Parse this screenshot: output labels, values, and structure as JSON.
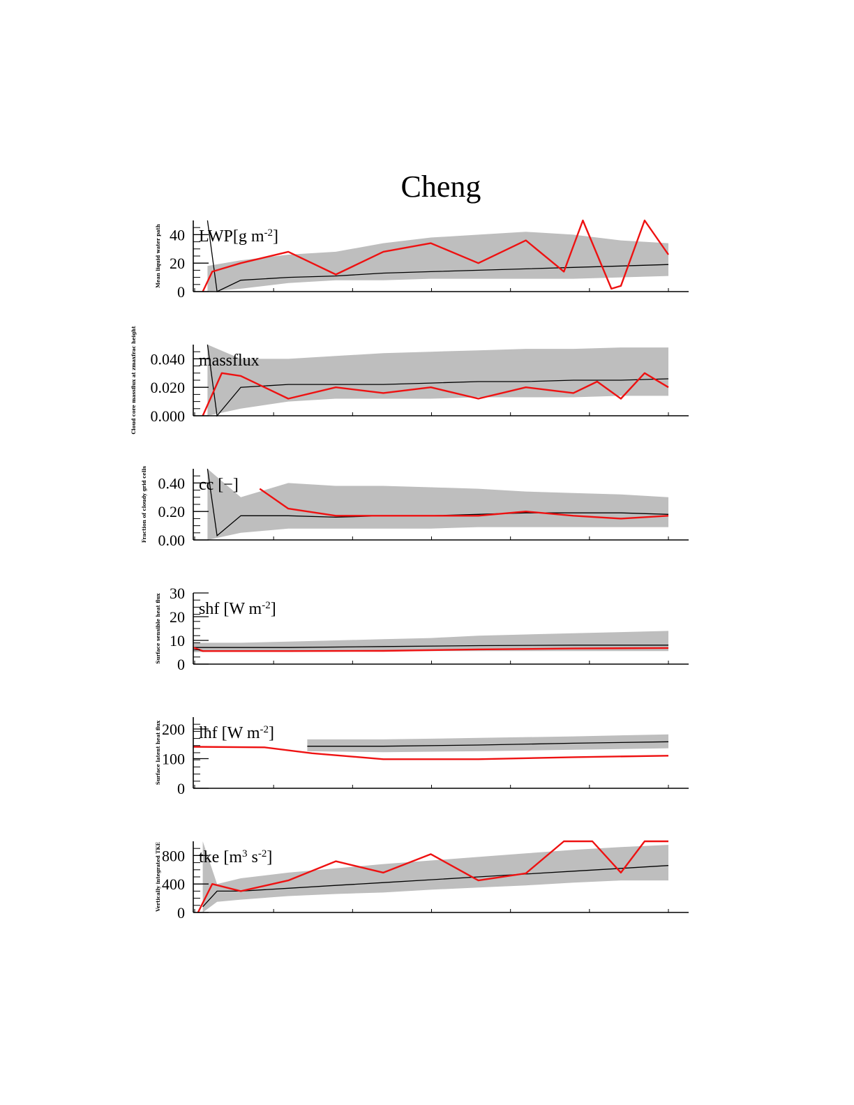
{
  "figure": {
    "title": "Cheng",
    "colors": {
      "band": "#bebebe",
      "mean": "#000000",
      "model": "#ee1111",
      "axis": "#000000"
    }
  },
  "chart_data": [
    {
      "type": "line",
      "panel_label": "LWP[g m",
      "panel_label_sup": "-2",
      "panel_label_end": "]",
      "ylabel": "Mean liquid water path",
      "ylim": [
        0,
        50
      ],
      "yticks": [
        0,
        20,
        40
      ],
      "ytick_labels": [
        "0",
        "20",
        "40"
      ],
      "xlim": [
        0,
        1
      ],
      "band_min": 0,
      "band_max": 50,
      "mean": 13,
      "red": 18,
      "grid": false,
      "series": [
        {
          "role": "ensemble range",
          "x": [
            0.03,
            0.1,
            0.2,
            0.3,
            0.4,
            0.5,
            0.6,
            0.7,
            0.8,
            0.9,
            1.0
          ],
          "low": [
            0,
            2,
            6,
            8,
            8,
            9,
            9,
            9,
            9,
            10,
            11
          ],
          "high": [
            18,
            22,
            26,
            28,
            34,
            38,
            40,
            42,
            40,
            36,
            34
          ]
        },
        {
          "role": "ensemble mean",
          "x": [
            0.03,
            0.05,
            0.1,
            0.2,
            0.3,
            0.4,
            0.5,
            0.6,
            0.7,
            0.8,
            0.9,
            1.0
          ],
          "y": [
            50,
            0,
            8,
            10,
            11,
            13,
            14,
            15,
            16,
            17,
            18,
            19
          ]
        },
        {
          "role": "model",
          "x": [
            0.02,
            0.04,
            0.1,
            0.2,
            0.3,
            0.4,
            0.5,
            0.6,
            0.7,
            0.78,
            0.82,
            0.88,
            0.9,
            0.95,
            1.0
          ],
          "y": [
            0,
            14,
            20,
            28,
            12,
            28,
            34,
            20,
            36,
            14,
            50,
            2,
            4,
            50,
            26
          ]
        }
      ]
    },
    {
      "type": "line",
      "panel_label": "massflux",
      "panel_label_sup": "",
      "panel_label_end": "",
      "ylabel": "Cloud core massflux at zmaxfrac height",
      "ylim": [
        0,
        0.05
      ],
      "yticks": [
        0,
        0.02,
        0.04
      ],
      "ytick_labels": [
        "0.000",
        "0.020",
        "0.040"
      ],
      "xlim": [
        0,
        1
      ],
      "band_min": 0,
      "band_max": 0.05,
      "mean": 0.023,
      "red": 0.02,
      "grid": false,
      "series": [
        {
          "role": "ensemble range",
          "x": [
            0.03,
            0.1,
            0.2,
            0.3,
            0.4,
            0.5,
            0.6,
            0.7,
            0.8,
            0.9,
            1.0
          ],
          "low": [
            0,
            0.005,
            0.01,
            0.012,
            0.012,
            0.012,
            0.013,
            0.013,
            0.013,
            0.014,
            0.014
          ],
          "high": [
            0.05,
            0.04,
            0.04,
            0.042,
            0.044,
            0.045,
            0.046,
            0.047,
            0.047,
            0.048,
            0.048
          ]
        },
        {
          "role": "ensemble mean",
          "x": [
            0.03,
            0.05,
            0.1,
            0.2,
            0.3,
            0.4,
            0.5,
            0.6,
            0.7,
            0.8,
            0.9,
            1.0
          ],
          "y": [
            0.05,
            0.0,
            0.02,
            0.022,
            0.022,
            0.022,
            0.023,
            0.024,
            0.024,
            0.025,
            0.025,
            0.026
          ]
        },
        {
          "role": "model",
          "x": [
            0.02,
            0.06,
            0.1,
            0.2,
            0.3,
            0.4,
            0.5,
            0.6,
            0.7,
            0.8,
            0.85,
            0.9,
            0.95,
            1.0
          ],
          "y": [
            0.0,
            0.03,
            0.028,
            0.012,
            0.02,
            0.016,
            0.02,
            0.012,
            0.02,
            0.016,
            0.024,
            0.012,
            0.03,
            0.02
          ]
        }
      ]
    },
    {
      "type": "line",
      "panel_label": "cc [",
      "panel_label_sup": "",
      "panel_label_end": "−]",
      "ylabel": "Fraction of cloudy grid cells",
      "ylim": [
        0,
        0.5
      ],
      "yticks": [
        0,
        0.2,
        0.4
      ],
      "ytick_labels": [
        "0.00",
        "0.20",
        "0.40"
      ],
      "xlim": [
        0,
        1
      ],
      "band_min": 0,
      "band_max": 0.5,
      "mean": 0.17,
      "red": 0.18,
      "grid": false,
      "series": [
        {
          "role": "ensemble range",
          "x": [
            0.03,
            0.1,
            0.2,
            0.3,
            0.4,
            0.5,
            0.6,
            0.7,
            0.8,
            0.9,
            1.0
          ],
          "low": [
            0,
            0.05,
            0.08,
            0.08,
            0.08,
            0.08,
            0.09,
            0.09,
            0.09,
            0.09,
            0.09
          ],
          "high": [
            0.5,
            0.3,
            0.4,
            0.38,
            0.38,
            0.37,
            0.36,
            0.34,
            0.33,
            0.32,
            0.3
          ]
        },
        {
          "role": "ensemble mean",
          "x": [
            0.03,
            0.05,
            0.1,
            0.2,
            0.3,
            0.4,
            0.5,
            0.6,
            0.7,
            0.8,
            0.9,
            1.0
          ],
          "y": [
            0.5,
            0.03,
            0.17,
            0.17,
            0.16,
            0.17,
            0.17,
            0.18,
            0.19,
            0.19,
            0.19,
            0.18
          ]
        },
        {
          "role": "model",
          "x": [
            0.14,
            0.2,
            0.3,
            0.4,
            0.5,
            0.6,
            0.7,
            0.8,
            0.9,
            1.0
          ],
          "y": [
            0.36,
            0.22,
            0.17,
            0.17,
            0.17,
            0.17,
            0.2,
            0.17,
            0.15,
            0.17
          ]
        }
      ]
    },
    {
      "type": "line",
      "panel_label": "shf [W m",
      "panel_label_sup": "-2",
      "panel_label_end": "]",
      "ylabel": "Surface sensible heat flux",
      "ylim": [
        0,
        30
      ],
      "yticks": [
        0,
        10,
        20,
        30
      ],
      "ytick_labels": [
        "0",
        "10",
        "20",
        "30"
      ],
      "xlim": [
        0,
        1
      ],
      "band_min": 0,
      "band_max": 30,
      "mean": 7.5,
      "red": 6,
      "grid": false,
      "series": [
        {
          "role": "ensemble range",
          "x": [
            0.0,
            0.1,
            0.2,
            0.3,
            0.4,
            0.5,
            0.6,
            0.7,
            0.8,
            0.9,
            1.0
          ],
          "low": [
            5,
            5.5,
            5.5,
            5.5,
            5.5,
            5.5,
            5.5,
            5.5,
            5.5,
            5.5,
            5.5
          ],
          "high": [
            9,
            9,
            9.5,
            10,
            10.5,
            11,
            12,
            12.5,
            13,
            13.5,
            14
          ]
        },
        {
          "role": "ensemble mean",
          "x": [
            0.0,
            0.2,
            0.4,
            0.6,
            0.8,
            1.0
          ],
          "y": [
            7,
            7,
            7.4,
            7.8,
            8,
            8
          ]
        },
        {
          "role": "model",
          "x": [
            0.0,
            0.02,
            0.2,
            0.4,
            0.6,
            0.8,
            1.0
          ],
          "y": [
            7,
            5.5,
            5.5,
            5.6,
            6.2,
            6.6,
            6.8
          ]
        }
      ]
    },
    {
      "type": "line",
      "panel_label": "lhf [W m",
      "panel_label_sup": "-2",
      "panel_label_end": "]",
      "ylabel": "Surface latent heat flux",
      "ylim": [
        0,
        240
      ],
      "yticks": [
        0,
        100,
        200
      ],
      "ytick_labels": [
        "0",
        "100",
        "200"
      ],
      "xlim": [
        0,
        1
      ],
      "band_min": 0,
      "band_max": 240,
      "mean": 145,
      "red": 100,
      "grid": false,
      "series": [
        {
          "role": "ensemble range",
          "x": [
            0.24,
            0.4,
            0.6,
            0.8,
            1.0
          ],
          "low": [
            125,
            122,
            125,
            130,
            135
          ],
          "high": [
            165,
            165,
            170,
            175,
            182
          ]
        },
        {
          "role": "ensemble mean",
          "x": [
            0.24,
            0.4,
            0.6,
            0.8,
            1.0
          ],
          "y": [
            142,
            142,
            146,
            152,
            157
          ]
        },
        {
          "role": "model",
          "x": [
            0.0,
            0.15,
            0.25,
            0.4,
            0.6,
            0.8,
            1.0
          ],
          "y": [
            140,
            138,
            118,
            98,
            98,
            105,
            110
          ]
        }
      ]
    },
    {
      "type": "line",
      "panel_label": "tke [m",
      "panel_label_sup": "3",
      "panel_label_mid": " s",
      "panel_label_sup2": "-2",
      "panel_label_end": "]",
      "ylabel": "Vertically integrated TKE",
      "ylim": [
        0,
        1000
      ],
      "yticks": [
        0,
        400,
        800
      ],
      "ytick_labels": [
        "0",
        "400",
        "800"
      ],
      "xlim": [
        0,
        1
      ],
      "band_min": 0,
      "band_max": 1000,
      "mean": 450,
      "red": 550,
      "grid": false,
      "series": [
        {
          "role": "ensemble range",
          "x": [
            0.02,
            0.05,
            0.1,
            0.2,
            0.3,
            0.4,
            0.5,
            0.6,
            0.7,
            0.8,
            0.9,
            1.0
          ],
          "low": [
            0,
            150,
            180,
            230,
            260,
            280,
            320,
            350,
            380,
            420,
            450,
            450
          ],
          "high": [
            1000,
            400,
            480,
            560,
            620,
            680,
            730,
            780,
            830,
            880,
            920,
            950
          ]
        },
        {
          "role": "ensemble mean",
          "x": [
            0.02,
            0.05,
            0.1,
            0.2,
            0.3,
            0.4,
            0.5,
            0.6,
            0.7,
            0.8,
            0.9,
            1.0
          ],
          "y": [
            80,
            300,
            300,
            340,
            380,
            420,
            460,
            500,
            540,
            580,
            620,
            660
          ]
        },
        {
          "role": "model",
          "x": [
            0.01,
            0.04,
            0.1,
            0.2,
            0.3,
            0.4,
            0.5,
            0.6,
            0.7,
            0.78,
            0.84,
            0.9,
            0.95,
            1.0
          ],
          "y": [
            0,
            400,
            300,
            450,
            720,
            560,
            820,
            450,
            550,
            1000,
            1000,
            560,
            1000,
            1000
          ]
        }
      ]
    }
  ]
}
